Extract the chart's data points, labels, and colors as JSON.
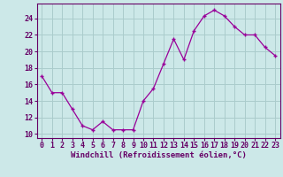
{
  "x": [
    0,
    1,
    2,
    3,
    4,
    5,
    6,
    7,
    8,
    9,
    10,
    11,
    12,
    13,
    14,
    15,
    16,
    17,
    18,
    19,
    20,
    21,
    22,
    23
  ],
  "y": [
    17.0,
    15.0,
    15.0,
    13.0,
    11.0,
    10.5,
    11.5,
    10.5,
    10.5,
    10.5,
    14.0,
    15.5,
    18.5,
    21.5,
    19.0,
    22.5,
    24.3,
    25.0,
    24.3,
    23.0,
    22.0,
    22.0,
    20.5,
    19.5
  ],
  "line_color": "#990099",
  "marker": "+",
  "bg_color": "#cce8e8",
  "grid_color": "#aacccc",
  "xlabel": "Windchill (Refroidissement éolien,°C)",
  "ylabel": "",
  "xlim": [
    -0.5,
    23.5
  ],
  "ylim": [
    9.5,
    25.8
  ],
  "yticks": [
    10,
    12,
    14,
    16,
    18,
    20,
    22,
    24
  ],
  "xticks": [
    0,
    1,
    2,
    3,
    4,
    5,
    6,
    7,
    8,
    9,
    10,
    11,
    12,
    13,
    14,
    15,
    16,
    17,
    18,
    19,
    20,
    21,
    22,
    23
  ],
  "tick_color": "#660066",
  "label_color": "#660066",
  "label_fontsize": 6.5,
  "tick_fontsize": 6.0,
  "spine_color": "#660066",
  "linewidth": 0.9,
  "markersize": 3.5
}
